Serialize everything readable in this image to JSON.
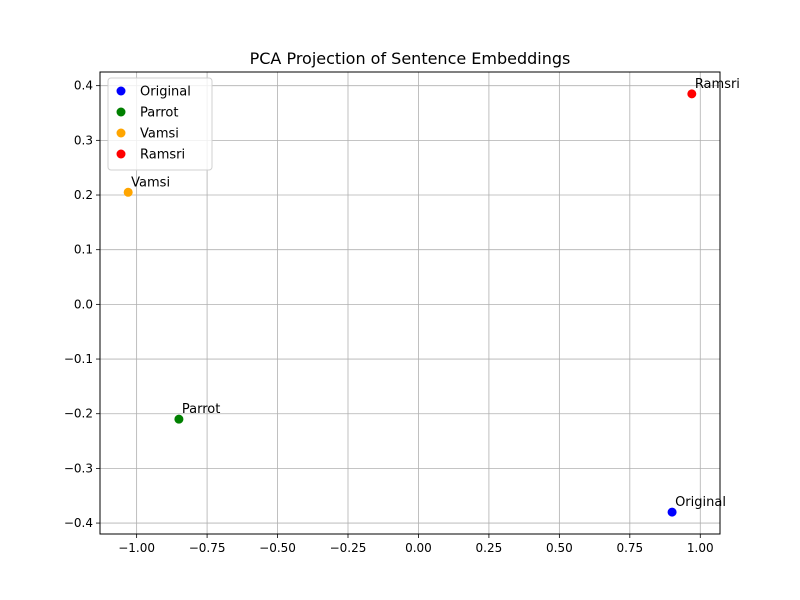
{
  "chart_data": {
    "type": "scatter",
    "title": "PCA Projection of Sentence Embeddings",
    "xlabel": "",
    "ylabel": "",
    "xlim": [
      -1.13,
      1.07
    ],
    "ylim": [
      -0.42,
      0.425
    ],
    "grid": true,
    "legend_position": "top-left",
    "x_ticks": [
      -1.0,
      -0.75,
      -0.5,
      -0.25,
      0.0,
      0.25,
      0.5,
      0.75,
      1.0
    ],
    "x_tick_labels": [
      "−1.00",
      "−0.75",
      "−0.50",
      "−0.25",
      "0.00",
      "0.25",
      "0.50",
      "0.75",
      "1.00"
    ],
    "y_ticks": [
      -0.4,
      -0.3,
      -0.2,
      -0.1,
      0.0,
      0.1,
      0.2,
      0.3,
      0.4
    ],
    "y_tick_labels": [
      "−0.4",
      "−0.3",
      "−0.2",
      "−0.1",
      "0.0",
      "0.1",
      "0.2",
      "0.3",
      "0.4"
    ],
    "series": [
      {
        "name": "Original",
        "color": "#0000ff",
        "x": 0.9,
        "y": -0.38,
        "label": "Original"
      },
      {
        "name": "Parrot",
        "color": "#008000",
        "x": -0.85,
        "y": -0.21,
        "label": "Parrot"
      },
      {
        "name": "Vamsi",
        "color": "#ffa500",
        "x": -1.03,
        "y": 0.205,
        "label": "Vamsi"
      },
      {
        "name": "Ramsri",
        "color": "#ff0000",
        "x": 0.97,
        "y": 0.385,
        "label": "Ramsri"
      }
    ]
  }
}
